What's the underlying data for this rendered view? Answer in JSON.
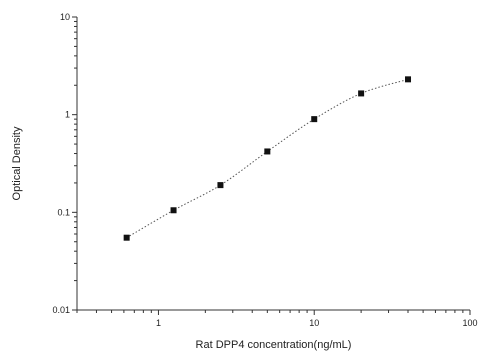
{
  "chart_data": {
    "type": "scatter",
    "x_scale": "log",
    "y_scale": "log",
    "xlabel": "Rat DPP4 concentration(ng/mL)",
    "ylabel": "Optical Density",
    "xlim": [
      0.3,
      100
    ],
    "ylim": [
      0.01,
      10
    ],
    "x_ticks": [
      1,
      10,
      100
    ],
    "x_tick_labels": [
      "1",
      "10",
      "100"
    ],
    "y_ticks": [
      0.01,
      0.1,
      1,
      10
    ],
    "y_tick_labels": [
      "0.01",
      "0.1",
      "1",
      "10"
    ],
    "grid": false,
    "legend": "none",
    "series": [
      {
        "x": [
          0.625,
          1.25,
          2.5,
          5,
          10,
          20,
          40
        ],
        "y": [
          0.055,
          0.105,
          0.19,
          0.42,
          0.9,
          1.65,
          2.3
        ],
        "marker": "square",
        "fit_line": "dotted"
      }
    ]
  }
}
